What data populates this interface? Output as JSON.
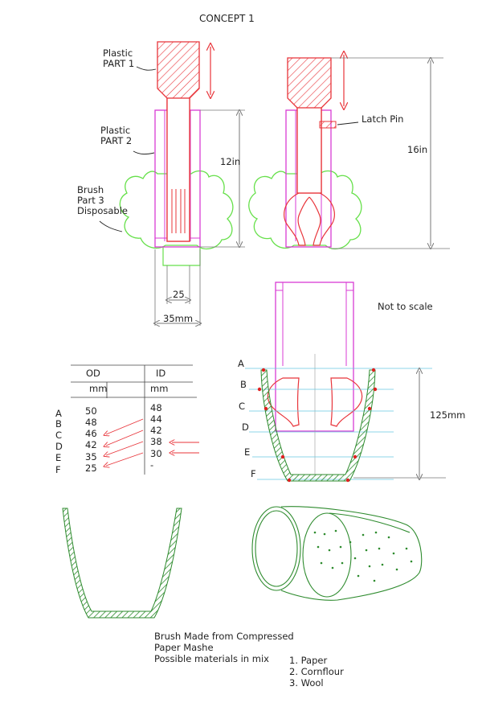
{
  "title": "CONCEPT 1",
  "labels": {
    "part1": [
      "Plastic",
      "PART 1"
    ],
    "part2": [
      "Plastic",
      "PART 2"
    ],
    "part3": [
      "Brush",
      "Part 3",
      "Disposable"
    ],
    "latch_pin": "Latch Pin",
    "not_to_scale": "Not to scale"
  },
  "dimensions": {
    "height_left": "12in",
    "height_right": "16in",
    "inner_width": "25",
    "outer_width": "35mm",
    "section_height": "125mm"
  },
  "section_letters": [
    "A",
    "B",
    "C",
    "D",
    "E",
    "F"
  ],
  "table": {
    "headers": [
      "OD",
      "ID"
    ],
    "units": [
      "mm",
      "mm"
    ],
    "rows": [
      {
        "letter": "A",
        "od": "50",
        "id": "48"
      },
      {
        "letter": "B",
        "od": "48",
        "id": "44"
      },
      {
        "letter": "C",
        "od": "46",
        "id": "42"
      },
      {
        "letter": "D",
        "od": "42",
        "id": "38"
      },
      {
        "letter": "E",
        "od": "35",
        "id": "30"
      },
      {
        "letter": "F",
        "od": "25",
        "id": "-"
      }
    ]
  },
  "notes": {
    "lines": [
      "Brush Made from Compressed",
      "Paper Mashe",
      "Possible materials in mix"
    ],
    "materials": [
      "1. Paper",
      "2. Cornflour",
      "3. Wool"
    ]
  },
  "colors": {
    "plastic_part1": "#e8343a",
    "plastic_part2": "#d93bd4",
    "brush_outline": "#66e04a",
    "hatch": "#2e8b2e",
    "guide": "#66c8e0",
    "dim": "#777777",
    "marker": "#e02020"
  }
}
